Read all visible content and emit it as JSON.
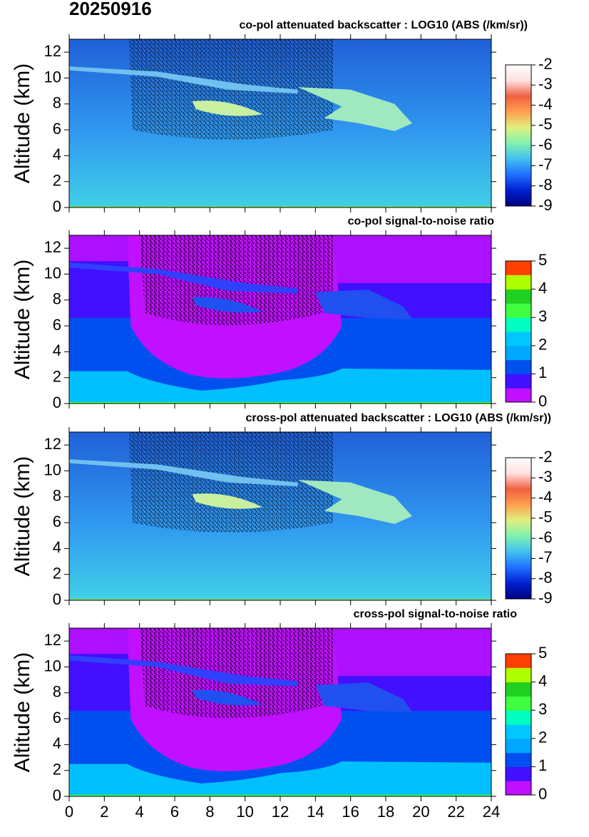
{
  "date": "20250916",
  "chart_data": [
    {
      "type": "heatmap",
      "title": "co-pol attenuated backscatter : LOG10 (ABS (/km/sr))",
      "y_label": "Altitude (km)",
      "xlim": [
        0,
        24
      ],
      "xticks": [
        0,
        2,
        4,
        6,
        8,
        10,
        12,
        14,
        16,
        18,
        20,
        22,
        24
      ],
      "ylim": [
        0,
        13
      ],
      "yticks": [
        0,
        2,
        4,
        6,
        8,
        10,
        12
      ],
      "colorbar": {
        "lim": [
          -9,
          -2
        ],
        "ticks": [
          -9,
          -8,
          -7,
          -6,
          -5,
          -4,
          -3,
          -2
        ],
        "discrete": false,
        "colors": [
          "#000080",
          "#0020d0",
          "#2070ff",
          "#40c0f0",
          "#80f0b0",
          "#e0f080",
          "#ffa050",
          "#f06040",
          "#ffe0e0",
          "#ffffff"
        ]
      }
    },
    {
      "type": "heatmap",
      "title": "co-pol signal-to-noise ratio",
      "y_label": "Altitude (km)",
      "xlim": [
        0,
        24
      ],
      "xticks": [
        0,
        2,
        4,
        6,
        8,
        10,
        12,
        14,
        16,
        18,
        20,
        22,
        24
      ],
      "ylim": [
        0,
        13
      ],
      "yticks": [
        0,
        2,
        4,
        6,
        8,
        10,
        12
      ],
      "colorbar": {
        "lim": [
          0,
          5
        ],
        "ticks": [
          0,
          1,
          2,
          3,
          4,
          5
        ],
        "discrete": true,
        "colors": [
          "#c010ff",
          "#4010ff",
          "#0050f0",
          "#00a8ff",
          "#00c8ff",
          "#00ffc0",
          "#40ff40",
          "#20d020",
          "#b0ff00",
          "#ffc000",
          "#ff4000"
        ]
      }
    },
    {
      "type": "heatmap",
      "title": "cross-pol attenuated backscatter : LOG10 (ABS (/km/sr))",
      "y_label": "Altitude (km)",
      "xlim": [
        0,
        24
      ],
      "xticks": [
        0,
        2,
        4,
        6,
        8,
        10,
        12,
        14,
        16,
        18,
        20,
        22,
        24
      ],
      "ylim": [
        0,
        13
      ],
      "yticks": [
        0,
        2,
        4,
        6,
        8,
        10,
        12
      ],
      "colorbar": {
        "lim": [
          -9,
          -2
        ],
        "ticks": [
          -9,
          -8,
          -7,
          -6,
          -5,
          -4,
          -3,
          -2
        ],
        "discrete": false,
        "colors": [
          "#000080",
          "#0020d0",
          "#2070ff",
          "#40c0f0",
          "#80f0b0",
          "#e0f080",
          "#ffa050",
          "#f06040",
          "#ffe0e0",
          "#ffffff"
        ]
      }
    },
    {
      "type": "heatmap",
      "title": "cross-pol signal-to-noise ratio",
      "y_label": "Altitude (km)",
      "xlim": [
        0,
        24
      ],
      "xticks": [
        0,
        2,
        4,
        6,
        8,
        10,
        12,
        14,
        16,
        18,
        20,
        22,
        24
      ],
      "ylim": [
        0,
        13
      ],
      "yticks": [
        0,
        2,
        4,
        6,
        8,
        10,
        12
      ],
      "colorbar": {
        "lim": [
          0,
          5
        ],
        "ticks": [
          0,
          1,
          2,
          3,
          4,
          5
        ],
        "discrete": true,
        "colors": [
          "#c010ff",
          "#4010ff",
          "#0050f0",
          "#00a8ff",
          "#00c8ff",
          "#00ffc0",
          "#40ff40",
          "#20d020",
          "#b0ff00",
          "#ffc000",
          "#ff4000"
        ]
      }
    }
  ]
}
